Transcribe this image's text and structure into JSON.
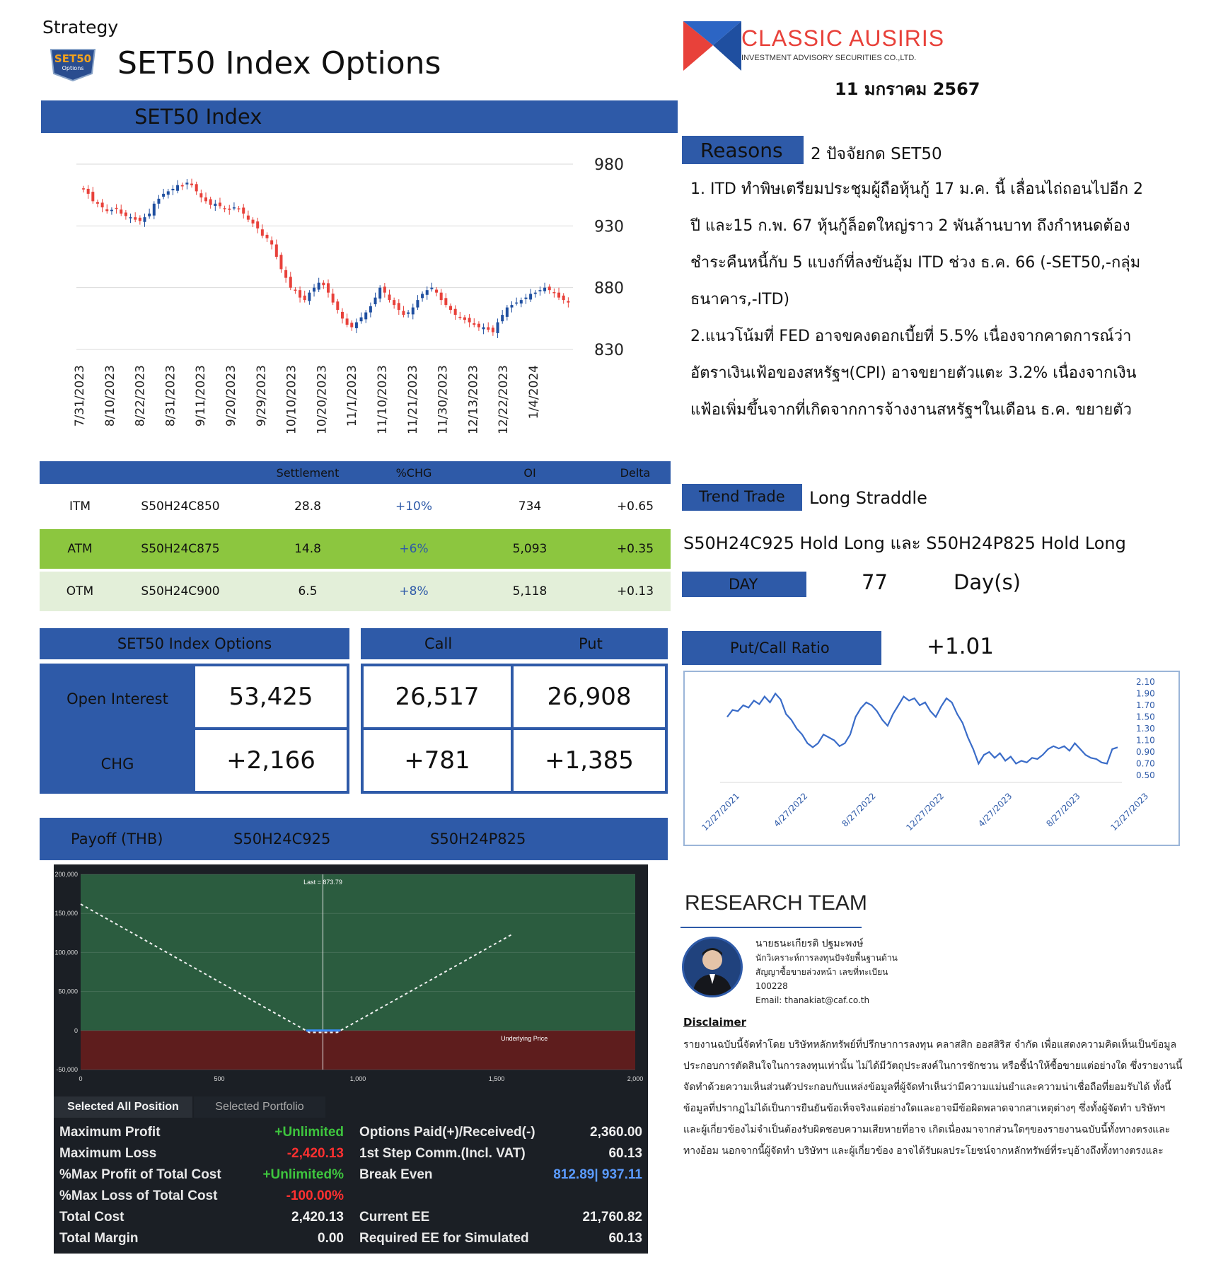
{
  "header": {
    "strategy_label": "Strategy",
    "title": "SET50 Index Options",
    "logo_badge": "SET50 Options TFEX",
    "brand_name": "CLASSIC AUSIRIS",
    "brand_sub": "INVESTMENT ADVISORY SECURITIES CO.,LTD.",
    "date": "11 มกราคม 2567"
  },
  "index_section": {
    "title": "SET50 Index"
  },
  "chart_data": [
    {
      "type": "candlestick",
      "title": "SET50 Index",
      "y_ticks": [
        "980",
        "930",
        "880",
        "830"
      ],
      "ylim": [
        830,
        980
      ],
      "x_ticks": [
        "7/31/2023",
        "8/10/2023",
        "8/22/2023",
        "8/31/2023",
        "9/11/2023",
        "9/20/2023",
        "9/29/2023",
        "10/10/2023",
        "10/20/2023",
        "11/1/2023",
        "11/10/2023",
        "11/21/2023",
        "11/30/2023",
        "12/13/2023",
        "12/22/2023",
        "1/4/2024"
      ],
      "closes": [
        960,
        956,
        950,
        948,
        945,
        942,
        943,
        944,
        940,
        938,
        937,
        935,
        934,
        937,
        940,
        948,
        952,
        956,
        958,
        960,
        963,
        962,
        965,
        963,
        958,
        953,
        950,
        947,
        948,
        946,
        944,
        943,
        945,
        944,
        940,
        935,
        932,
        928,
        922,
        920,
        915,
        905,
        895,
        888,
        880,
        878,
        872,
        870,
        876,
        880,
        884,
        882,
        876,
        868,
        862,
        855,
        850,
        848,
        852,
        856,
        860,
        865,
        872,
        880,
        876,
        870,
        866,
        862,
        858,
        860,
        864,
        870,
        875,
        878,
        880,
        876,
        870,
        866,
        862,
        858,
        856,
        854,
        852,
        850,
        848,
        848,
        846,
        844,
        852,
        858,
        864,
        866,
        868,
        870,
        872,
        875,
        876,
        878,
        880,
        878,
        876,
        872,
        870,
        868
      ]
    },
    {
      "type": "line",
      "title": "Put/Call Ratio",
      "y_ticks": [
        "2.10",
        "1.90",
        "1.70",
        "1.50",
        "1.30",
        "1.10",
        "0.90",
        "0.70",
        "0.50"
      ],
      "ylim": [
        0.5,
        2.1
      ],
      "x_ticks": [
        "12/27/2021",
        "4/27/2022",
        "8/27/2022",
        "12/27/2022",
        "4/27/2023",
        "8/27/2023",
        "12/27/2023"
      ],
      "values": [
        1.5,
        1.62,
        1.6,
        1.7,
        1.66,
        1.78,
        1.72,
        1.85,
        1.75,
        1.9,
        1.8,
        1.55,
        1.45,
        1.3,
        1.2,
        1.05,
        0.98,
        1.05,
        1.2,
        1.15,
        1.1,
        1.0,
        1.05,
        1.2,
        1.5,
        1.65,
        1.75,
        1.7,
        1.6,
        1.45,
        1.35,
        1.55,
        1.7,
        1.85,
        1.78,
        1.82,
        1.7,
        1.75,
        1.6,
        1.5,
        1.68,
        1.82,
        1.75,
        1.55,
        1.4,
        1.15,
        0.95,
        0.7,
        0.85,
        0.9,
        0.8,
        0.88,
        0.75,
        0.82,
        0.7,
        0.75,
        0.72,
        0.8,
        0.78,
        0.85,
        0.95,
        1.0,
        0.96,
        1.0,
        0.92,
        1.05,
        0.95,
        0.85,
        0.8,
        0.78,
        0.72,
        0.7,
        0.95,
        0.98
      ]
    },
    {
      "type": "line",
      "title": "Payoff",
      "y_ticks": [
        "200,000",
        "150,000",
        "100,000",
        "50,000",
        "0",
        "-50,000"
      ],
      "x_ticks": [
        "0",
        "500",
        "1,000",
        "1,500",
        "2,000"
      ],
      "xlim": [
        0,
        2000
      ],
      "ylim": [
        -50000,
        200000
      ],
      "series": [
        {
          "x": [
            0,
            812.89,
            825,
            925,
            937.11,
            1560
          ],
          "y": [
            162000,
            0,
            -2420,
            -2420,
            0,
            124000
          ]
        }
      ],
      "last_label": "Last = 873.79",
      "last_x": 873.79,
      "underlying_label": "Underlying Price"
    }
  ],
  "options_table": {
    "headers": [
      "",
      "",
      "Settlement",
      "%CHG",
      "OI",
      "Delta"
    ],
    "rows": [
      {
        "type": "ITM",
        "series": "S50H24C850",
        "settlement": "28.8",
        "chg": "+10%",
        "oi": "734",
        "delta": "+0.65",
        "bg": "#ffffff"
      },
      {
        "type": "ATM",
        "series": "S50H24C875",
        "settlement": "14.8",
        "chg": "+6%",
        "oi": "5,093",
        "delta": "+0.35",
        "bg": "#8cc63f"
      },
      {
        "type": "OTM",
        "series": "S50H24C900",
        "settlement": "6.5",
        "chg": "+8%",
        "oi": "5,118",
        "delta": "+0.13",
        "bg": "#e3efd9"
      }
    ]
  },
  "oi_section": {
    "title": "SET50 Index Options",
    "call_label": "Call",
    "put_label": "Put",
    "oi_label": "Open Interest",
    "chg_label": "CHG",
    "oi_total": "53,425",
    "oi_call": "26,517",
    "oi_put": "26,908",
    "chg_total": "+2,166",
    "chg_call": "+781",
    "chg_put": "+1,385"
  },
  "payoff_section": {
    "label": "Payoff (THB)",
    "leg1": "S50H24C925",
    "leg2": "S50H24P825",
    "tab_all": "Selected All Position",
    "tab_portfolio": "Selected Portfolio",
    "left_rows": [
      {
        "label": "Maximum Profit",
        "value": "+Unlimited",
        "color": "#3ec53e"
      },
      {
        "label": "Maximum Loss",
        "value": "-2,420.13",
        "color": "#ff3030"
      },
      {
        "label": "%Max Profit of Total Cost",
        "value": "+Unlimited%",
        "color": "#3ec53e"
      },
      {
        "label": "%Max Loss of Total Cost",
        "value": "-100.00%",
        "color": "#ff3030"
      },
      {
        "label": "Total Cost",
        "value": "2,420.13",
        "color": "#f0f0f0"
      },
      {
        "label": "Total Margin",
        "value": "0.00",
        "color": "#f0f0f0"
      }
    ],
    "right_rows": [
      {
        "label": "Options Paid(+)/Received(-)",
        "value": "2,360.00",
        "color": "#f0f0f0"
      },
      {
        "label": "1st Step Comm.(Incl. VAT)",
        "value": "60.13",
        "color": "#f0f0f0"
      },
      {
        "label": "Break Even",
        "value": "812.89| 937.11",
        "color": "#5b9bff"
      },
      {
        "label": "",
        "value": "",
        "color": "#f0f0f0"
      },
      {
        "label": "Current EE",
        "value": "21,760.82",
        "color": "#f0f0f0"
      },
      {
        "label": "Required EE for Simulated",
        "value": "60.13",
        "color": "#f0f0f0"
      }
    ]
  },
  "reasons": {
    "label": "Reasons",
    "headline": "2 ปัจจัยกด SET50",
    "lines": [
      "1. ITD ทำพิษเตรียมประชุมผู้ถือหุ้นกู้ 17 ม.ค. นี้ เลื่อนไถ่ถอนไปอีก 2",
      "ปี และ15 ก.พ. 67 หุ้นกู้ล็อตใหญ่ราว 2 พันล้านบาท ถึงกำหนดต้อง",
      "ชำระคืนหนี้กับ 5 แบงก์ที่ลงขันอุ้ม ITD ช่วง ธ.ค. 66 (-SET50,-กลุ่ม",
      "ธนาคาร,-ITD)",
      "2.แนวโน้มที่ FED อาจขคงดอกเบี้ยที่ 5.5% เนื่องจากคาดการณ์ว่า",
      "อัตราเงินเฟ้อของสหรัฐฯ(CPI) อาจขยายตัวแตะ 3.2% เนื่องจากเงิน",
      "แฟ้อเพิ่มขึ้นจากที่เกิดจากการจ้างงานสหรัฐฯในเดือน ธ.ค. ขยายตัว"
    ]
  },
  "trend": {
    "label": "Trend Trade",
    "value": "Long Straddle",
    "position": "S50H24C925 Hold Long และ S50H24P825 Hold Long",
    "day_label": "DAY",
    "day_value": "77",
    "day_unit": "Day(s)",
    "pcr_label": "Put/Call Ratio",
    "pcr_value": "+1.01"
  },
  "research": {
    "title": "RESEARCH TEAM",
    "name": "นายธนะเกียรติ ปฐมะพงษ์",
    "role1": "นักวิเคราะห์การลงทุนปัจจัยพื้นฐานด้าน",
    "role2": "สัญญาซื้อขายล่วงหน้า เลขที่ทะเบียน",
    "reg": "100228",
    "email": "Email: thanakiat@caf.co.th"
  },
  "disclaimer": {
    "title": "Disclaimer",
    "lines": [
      "รายงานฉบับนี้จัดทำโดย บริษัทหลักทรัพย์ที่ปรึกษาการลงทุน คลาสสิก ออสสิริส จำกัด เพื่อแสดงความคิดเห็นเป็นข้อมูล",
      "ประกอบการตัดสินใจในการลงทุนเท่านั้น ไม่ได้มีวัตถุประสงค์ในการชักชวน หรือชี้นำให้ซื้อขายแต่อย่างใด ซึ่งรายงานนี้",
      "จัดทำด้วยความเห็นส่วนตัวประกอบกับแหล่งข้อมูลที่ผู้จัดทำเห็นว่ามีความแม่นยำและความน่าเชื่อถือที่ยอมรับได้ ทั้งนี้",
      "ข้อมูลที่ปรากฏไม่ได้เป็นการยืนยันข้อเท็จจริงแต่อย่างใดและอาจมีข้อผิดพลาดจากสาเหตุต่างๆ ซึ่งทั้งผู้จัดทำ บริษัทฯ",
      "และผู้เกี่ยวข้องไม่จำเป็นต้องรับผิดชอบความเสียหายที่อาจ เกิดเนื่องมาจากส่วนใดๆของรายงานฉบับนี้ทั้งทางตรงและ",
      "ทางอ้อม นอกจากนี้ผู้จัดทำ บริษัทฯ และผู้เกี่ยวข้อง อาจได้รับผลประโยชน์จากหลักทรัพย์ที่ระบุอ้างถึงทั้งทางตรงและ"
    ]
  },
  "colors": {
    "accent_blue": "#2e5aa8",
    "logo_red": "#e8413a",
    "logo_blue": "#1f4fa0",
    "candle_up": "#1f4fa0",
    "candle_down": "#e8413a",
    "payoff_green": "#2b5c3f",
    "payoff_red": "#5e1d1d"
  }
}
